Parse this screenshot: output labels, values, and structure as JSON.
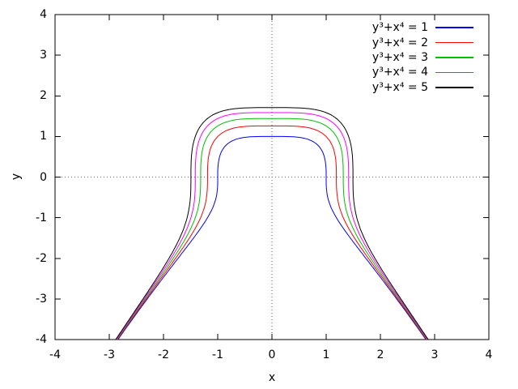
{
  "figure": {
    "background": "#ffffff",
    "axis_color": "#000000",
    "zero_axis_style": "dotted",
    "zero_axis_color": "#666666"
  },
  "chart_data": {
    "type": "line",
    "subtype": "implicit-contour-curves",
    "equation_family": "y^3 + x^4 = c",
    "title": "",
    "xlabel": "x",
    "ylabel": "y",
    "xlim": [
      -4,
      4
    ],
    "ylim": [
      -4,
      4
    ],
    "xtick_labels": [
      "-4",
      "-3",
      "-2",
      "-1",
      "0",
      "1",
      "2",
      "3",
      "4"
    ],
    "ytick_labels": [
      "4",
      "3",
      "2",
      "1",
      "0",
      "-1",
      "-2",
      "-3",
      "-4"
    ],
    "grid": "zero-axes-dotted-only",
    "legend_position": "top-right-inside",
    "series": [
      {
        "label": "y³+x⁴ = 1",
        "level": 1,
        "color": "#0000ff",
        "y_at_x0": 1.0,
        "x_at_y0": 1.0,
        "x_at_ybottom": 2.8394
      },
      {
        "label": "y³+x⁴ = 2",
        "level": 2,
        "color": "#ff0000",
        "y_at_x0": 1.2599,
        "x_at_y0": 1.1892,
        "x_at_ybottom": 2.8503
      },
      {
        "label": "y³+x⁴ = 3",
        "level": 3,
        "color": "#00c000",
        "y_at_x0": 1.4422,
        "x_at_y0": 1.3161,
        "x_at_ybottom": 2.861
      },
      {
        "label": "y³+x⁴ = 4",
        "level": 4,
        "color": "#ff00ff",
        "y_at_x0": 1.5874,
        "x_at_y0": 1.4142,
        "x_at_ybottom": 2.8717
      },
      {
        "label": "y³+x⁴ = 5",
        "level": 5,
        "color": "#000000",
        "y_at_x0": 1.71,
        "x_at_y0": 1.4953,
        "x_at_ybottom": 2.8823
      }
    ]
  }
}
